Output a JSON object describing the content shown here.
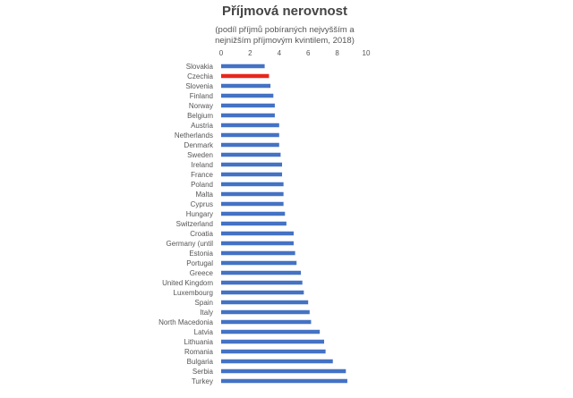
{
  "chart_data": {
    "type": "bar",
    "orientation": "horizontal",
    "title": "Příjmová nerovnost",
    "subtitle_lines": [
      "(podíl příjmů pobíraných nejvyšším a",
      "nejnižším příjmovým kvintilem, 2018)"
    ],
    "xlim": [
      0,
      10
    ],
    "xticks": [
      "0",
      "2",
      "4",
      "6",
      "8",
      "10"
    ],
    "grid": false,
    "categories": [
      "Slovakia",
      "Czechia",
      "Slovenia",
      "Finland",
      "Norway",
      "Belgium",
      "Austria",
      "Netherlands",
      "Denmark",
      "Sweden",
      "Ireland",
      "France",
      "Poland",
      "Malta",
      "Cyprus",
      "Hungary",
      "Switzerland",
      "Croatia",
      "Germany (until",
      "Estonia",
      "Portugal",
      "Greece",
      "United Kingdom",
      "Luxembourg",
      "Spain",
      "Italy",
      "North Macedonia",
      "Latvia",
      "Lithuania",
      "Romania",
      "Bulgaria",
      "Serbia",
      "Turkey"
    ],
    "values": [
      3.0,
      3.3,
      3.4,
      3.6,
      3.7,
      3.7,
      4.0,
      4.0,
      4.0,
      4.1,
      4.2,
      4.2,
      4.3,
      4.3,
      4.3,
      4.4,
      4.5,
      5.0,
      5.0,
      5.1,
      5.2,
      5.5,
      5.6,
      5.7,
      6.0,
      6.1,
      6.2,
      6.8,
      7.1,
      7.2,
      7.7,
      8.6,
      8.7
    ],
    "colors": {
      "default": "#4472c4",
      "highlight": "#e8261d"
    },
    "highlight_category": "Czechia"
  }
}
